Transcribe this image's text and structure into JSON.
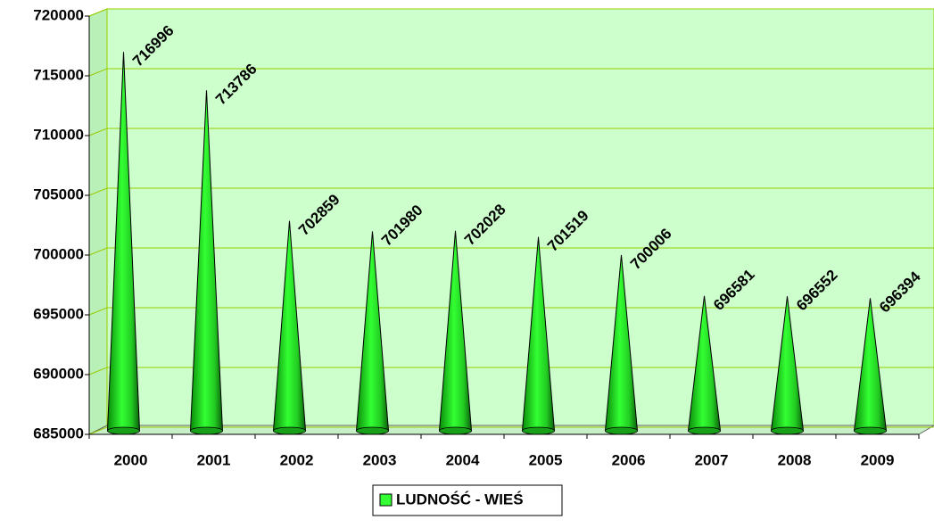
{
  "chart_data": {
    "type": "cone",
    "categories": [
      "2000",
      "2001",
      "2002",
      "2003",
      "2004",
      "2005",
      "2006",
      "2007",
      "2008",
      "2009"
    ],
    "series": [
      {
        "name": "LUDNOŚĆ - WIEŚ",
        "color": "#33ff33",
        "values": [
          716996,
          713786,
          702859,
          701980,
          702028,
          701519,
          700006,
          696581,
          696552,
          696394
        ]
      }
    ],
    "ylim": [
      685000,
      720000
    ],
    "yticks": [
      685000,
      690000,
      695000,
      700000,
      705000,
      710000,
      715000,
      720000
    ],
    "grid": true,
    "legend": "bottom"
  }
}
